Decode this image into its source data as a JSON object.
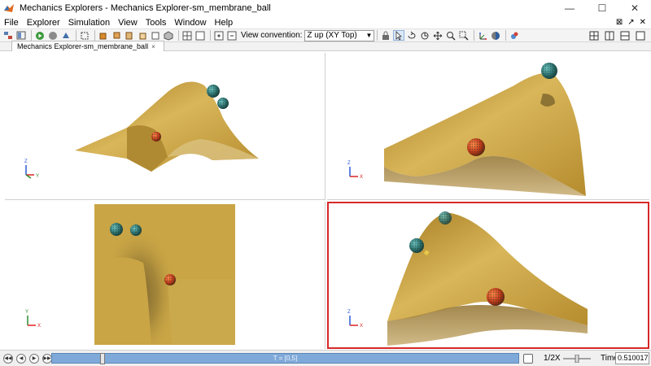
{
  "window": {
    "title": "Mechanics Explorers - Mechanics Explorer-sm_membrane_ball",
    "minimize": "—",
    "maximize": "☐",
    "close": "✕"
  },
  "menu": {
    "items": [
      "File",
      "Explorer",
      "Simulation",
      "View",
      "Tools",
      "Window",
      "Help"
    ],
    "right_controls": [
      "⊠",
      "↗",
      "✕"
    ]
  },
  "toolbar": {
    "view_convention_label": "View convention:",
    "view_convention_value": "Z up (XY Top)"
  },
  "tab": {
    "label": "Mechanics Explorer-sm_membrane_ball",
    "close": "×"
  },
  "triad": {
    "x_label": "X",
    "y_label": "Y",
    "z_label": "Z"
  },
  "playback": {
    "timeline_label": "T = [0,5]",
    "thumb_fraction": 0.102,
    "speed_label": "1/2X",
    "time_label": "Time",
    "time_value": "0.510017"
  },
  "colors": {
    "membrane": "#c9a545",
    "membrane_dark": "#8a6a1e",
    "ball_red": "#c0391b",
    "ball_teal": "#2c6f6f",
    "selected_viewport_border": "#d62828",
    "timeline": "#7fa9d8"
  }
}
